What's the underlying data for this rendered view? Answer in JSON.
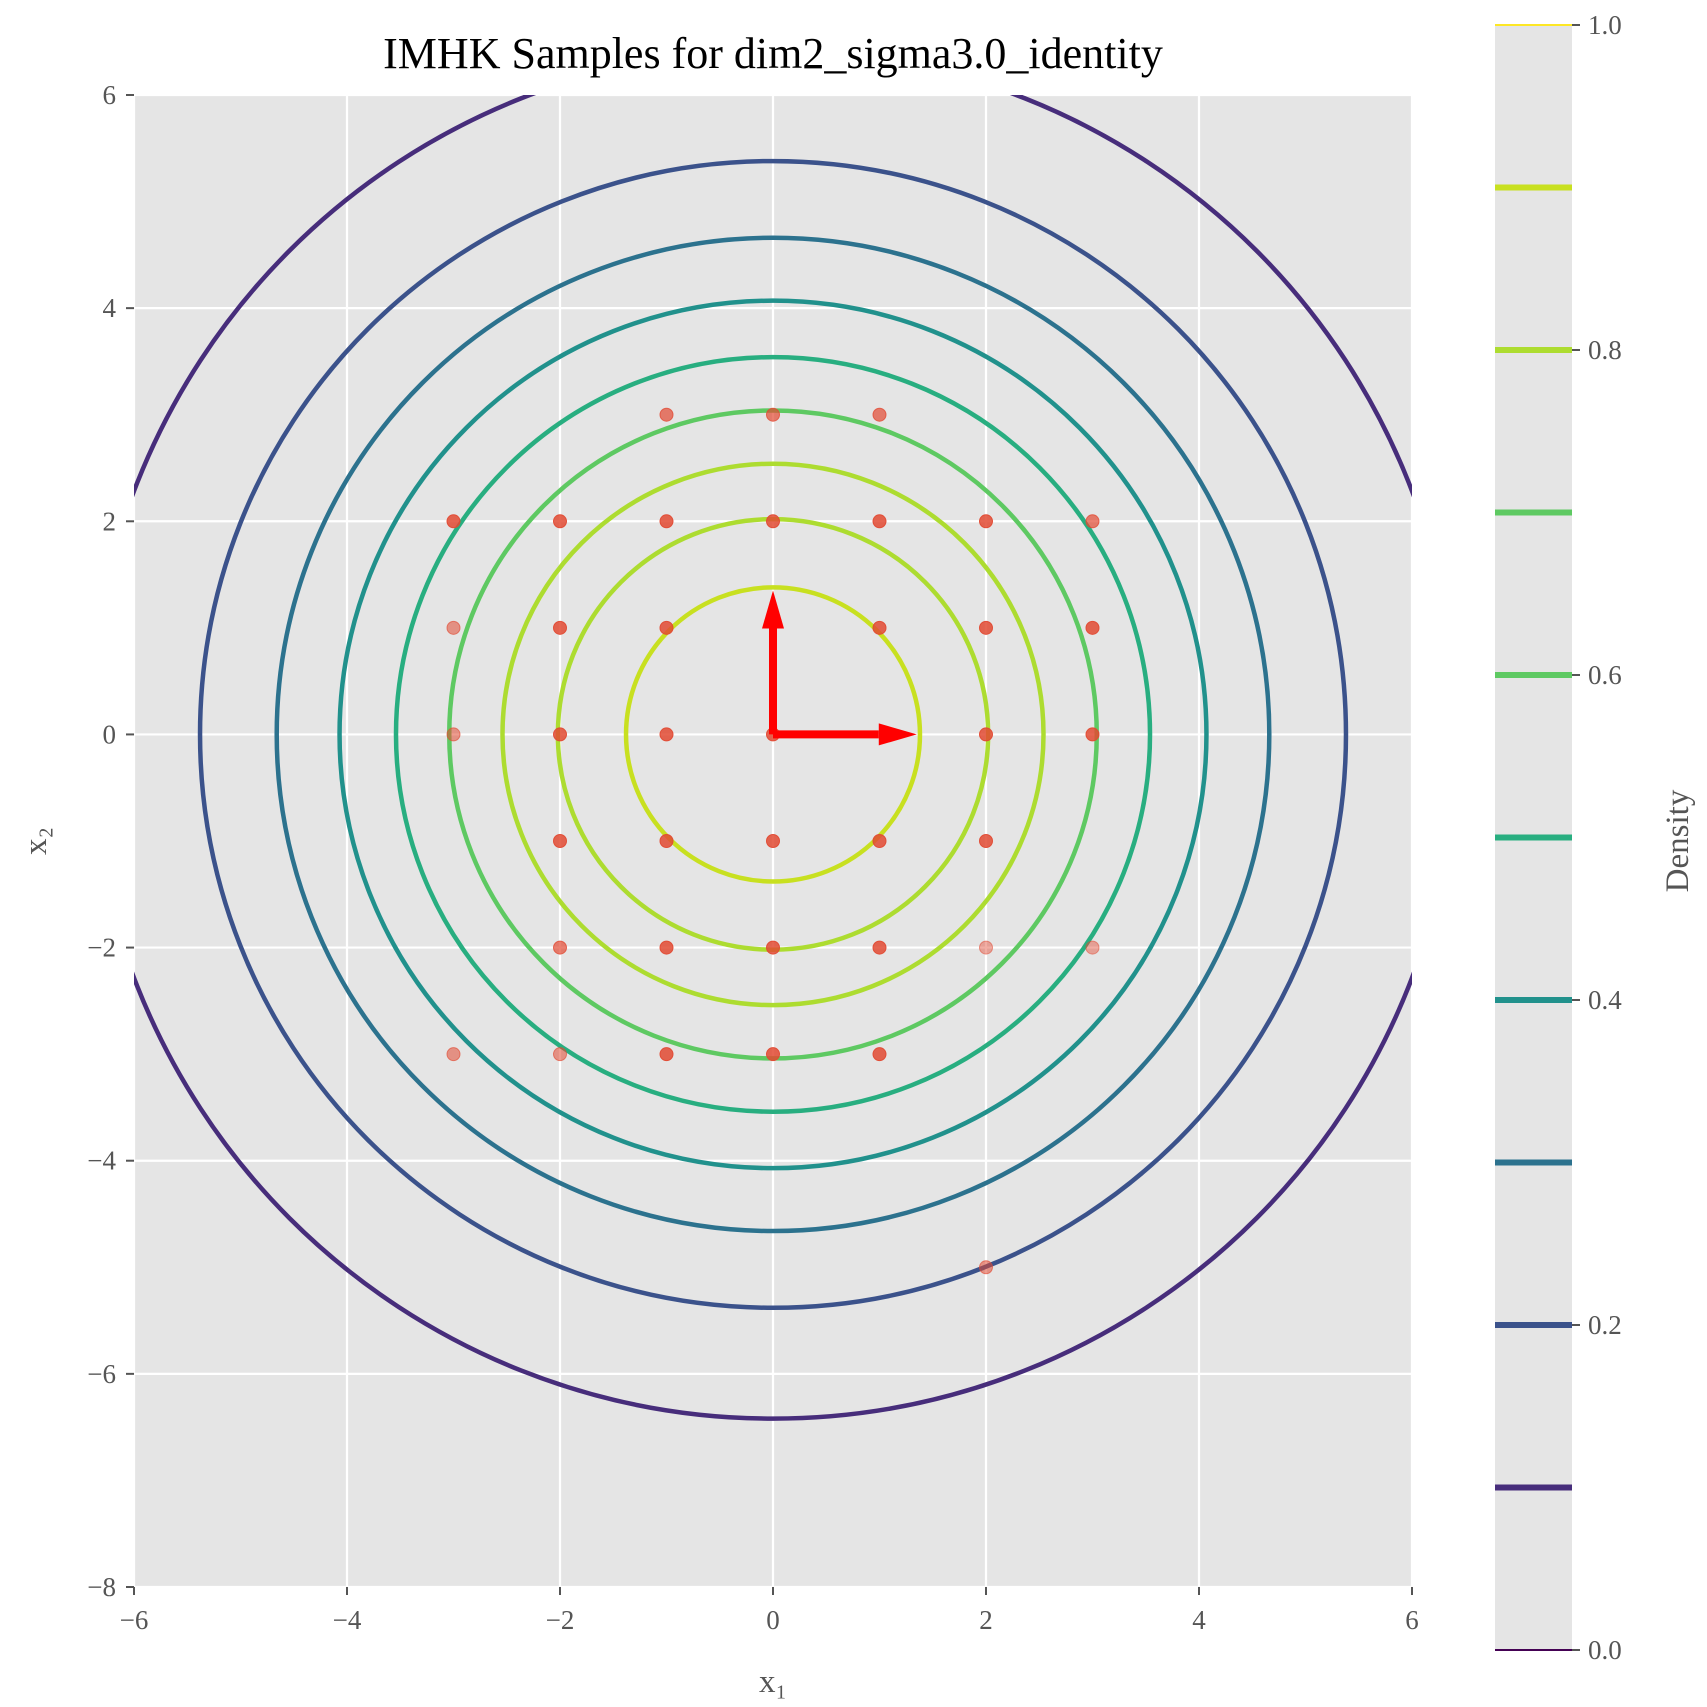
{
  "chart_data": {
    "type": "contour+scatter",
    "title": "IMHK Samples for dim2_sigma3.0_identity",
    "xlabel": "x₁",
    "ylabel": "x₂",
    "xlim": [
      -6,
      6
    ],
    "ylim": [
      -8,
      6
    ],
    "xticks": [
      -6,
      -4,
      -2,
      0,
      2,
      4,
      6
    ],
    "yticks": [
      -8,
      -6,
      -4,
      -2,
      0,
      2,
      4,
      6
    ],
    "grid": true,
    "contours": {
      "levels": [
        0.1,
        0.2,
        0.3,
        0.4,
        0.5,
        0.6,
        0.7,
        0.8,
        0.9
      ],
      "radii": [
        6.42,
        5.38,
        4.66,
        4.07,
        3.54,
        3.04,
        2.54,
        2.02,
        1.38
      ],
      "center": [
        0,
        0
      ],
      "colors": [
        "#472d7b",
        "#3b528b",
        "#2c728e",
        "#21918c",
        "#28ae80",
        "#5ec962",
        "#addc30",
        "#addc30",
        "#c8e020"
      ]
    },
    "colorbar": {
      "label": "Density",
      "range": [
        0.0,
        1.0
      ],
      "ticks": [
        "0.0",
        "0.2",
        "0.4",
        "0.6",
        "0.8",
        "1.0"
      ],
      "tick_values": [
        0.0,
        0.2,
        0.4,
        0.6,
        0.8,
        1.0
      ],
      "line_levels": [
        0.0,
        0.1,
        0.2,
        0.3,
        0.4,
        0.5,
        0.6,
        0.7,
        0.8,
        0.9,
        1.0
      ],
      "line_colors": [
        "#440154",
        "#472d7b",
        "#3b528b",
        "#2c728e",
        "#21918c",
        "#28ae80",
        "#5ec962",
        "#5ec962",
        "#addc30",
        "#c8e020",
        "#fde725"
      ]
    },
    "basis_vectors": [
      {
        "name": "b1",
        "from": [
          0,
          0
        ],
        "to": [
          1.35,
          0
        ],
        "color": "#ff0000"
      },
      {
        "name": "b2",
        "from": [
          0,
          0
        ],
        "to": [
          0,
          1.35
        ],
        "color": "#ff0000"
      }
    ],
    "samples": [
      {
        "x": -1,
        "y": 3,
        "alpha": 0.7
      },
      {
        "x": 0,
        "y": 3,
        "alpha": 0.7
      },
      {
        "x": 1,
        "y": 3,
        "alpha": 0.7
      },
      {
        "x": -3,
        "y": 2,
        "alpha": 0.85
      },
      {
        "x": -2,
        "y": 2,
        "alpha": 0.85
      },
      {
        "x": -1,
        "y": 2,
        "alpha": 0.85
      },
      {
        "x": 0,
        "y": 2,
        "alpha": 0.85
      },
      {
        "x": 1,
        "y": 2,
        "alpha": 0.85
      },
      {
        "x": 2,
        "y": 2,
        "alpha": 0.85
      },
      {
        "x": 3,
        "y": 2,
        "alpha": 0.7
      },
      {
        "x": -3,
        "y": 1,
        "alpha": 0.55
      },
      {
        "x": -2,
        "y": 1,
        "alpha": 0.85
      },
      {
        "x": -1,
        "y": 1,
        "alpha": 0.85
      },
      {
        "x": 1,
        "y": 1,
        "alpha": 0.85
      },
      {
        "x": 2,
        "y": 1,
        "alpha": 0.85
      },
      {
        "x": 3,
        "y": 1,
        "alpha": 0.85
      },
      {
        "x": -3,
        "y": 0,
        "alpha": 0.55
      },
      {
        "x": -2,
        "y": 0,
        "alpha": 0.85
      },
      {
        "x": -1,
        "y": 0,
        "alpha": 0.85
      },
      {
        "x": 0,
        "y": 0,
        "alpha": 0.85
      },
      {
        "x": 2,
        "y": 0,
        "alpha": 0.85
      },
      {
        "x": 3,
        "y": 0,
        "alpha": 0.85
      },
      {
        "x": -2,
        "y": -1,
        "alpha": 0.85
      },
      {
        "x": -1,
        "y": -1,
        "alpha": 0.85
      },
      {
        "x": 0,
        "y": -1,
        "alpha": 0.85
      },
      {
        "x": 1,
        "y": -1,
        "alpha": 0.85
      },
      {
        "x": 2,
        "y": -1,
        "alpha": 0.85
      },
      {
        "x": -2,
        "y": -2,
        "alpha": 0.7
      },
      {
        "x": -1,
        "y": -2,
        "alpha": 0.85
      },
      {
        "x": 0,
        "y": -2,
        "alpha": 0.85
      },
      {
        "x": 1,
        "y": -2,
        "alpha": 0.85
      },
      {
        "x": 2,
        "y": -2,
        "alpha": 0.45
      },
      {
        "x": 3,
        "y": -2,
        "alpha": 0.45
      },
      {
        "x": -3,
        "y": -3,
        "alpha": 0.55
      },
      {
        "x": -2,
        "y": -3,
        "alpha": 0.55
      },
      {
        "x": -1,
        "y": -3,
        "alpha": 0.85
      },
      {
        "x": 0,
        "y": -3,
        "alpha": 0.85
      },
      {
        "x": 1,
        "y": -3,
        "alpha": 0.85
      },
      {
        "x": 2,
        "y": -5,
        "alpha": 0.55
      }
    ],
    "sample_color": "#e24a33",
    "plot_background": "#e5e5e5",
    "grid_color": "#ffffff"
  }
}
